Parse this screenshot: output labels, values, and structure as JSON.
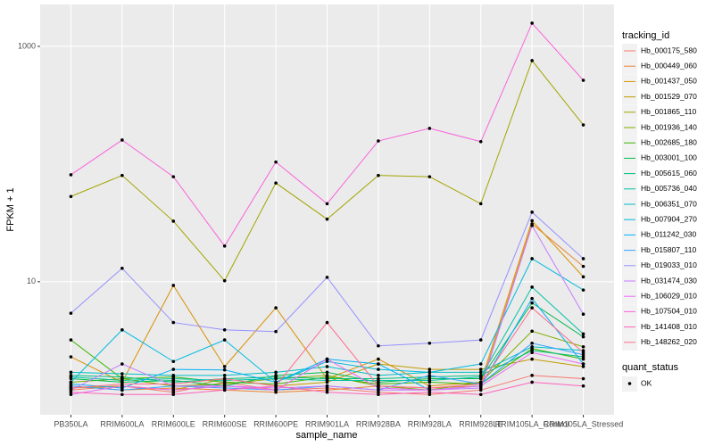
{
  "chart_data": {
    "type": "line",
    "x_label": "sample_name",
    "y_label": "FPKM + 1",
    "log_y": true,
    "grid": true,
    "legend_position": "right",
    "legend_title": "tracking_id",
    "point_legend": {
      "title": "quant_status",
      "labels": [
        "OK"
      ],
      "color": "#000000"
    },
    "categories": [
      "PB350LA",
      "RRIM600LA",
      "RRIM600LE",
      "RRIM600SE",
      "RRIM600PE",
      "RRIM901LA",
      "RRIM928BA",
      "RRIM928LA",
      "RRIM928LE",
      "RRIM105LA_Control",
      "RRIM105LA_Stressed"
    ],
    "ylim": [
      0.74,
      2270
    ],
    "yticks": [
      10,
      1000
    ],
    "series": [
      {
        "name": "Hb_000175_580",
        "color": "#F8766D",
        "values": [
          1.2,
          1.3,
          1.15,
          1.4,
          1.2,
          1.25,
          1.15,
          1.1,
          1.2,
          1.6,
          1.5
        ]
      },
      {
        "name": "Hb_000449_060",
        "color": "#EA8331",
        "values": [
          1.3,
          1.2,
          1.25,
          1.2,
          1.15,
          1.2,
          1.3,
          1.25,
          1.3,
          31,
          13.5
        ]
      },
      {
        "name": "Hb_001437_050",
        "color": "#D89000",
        "values": [
          2.3,
          1.4,
          9.3,
          1.9,
          6.0,
          1.5,
          2.2,
          1.3,
          1.4,
          33,
          11
        ]
      },
      {
        "name": "Hb_001529_070",
        "color": "#C09B00",
        "values": [
          1.25,
          1.3,
          1.2,
          1.5,
          1.3,
          1.4,
          2.0,
          1.8,
          1.8,
          2.2,
          1.9
        ]
      },
      {
        "name": "Hb_001865_110",
        "color": "#A3A500",
        "values": [
          53,
          80,
          32.7,
          10.2,
          69,
          34,
          80,
          78,
          46,
          757,
          215
        ]
      },
      {
        "name": "Hb_001936_140",
        "color": "#7CAE00",
        "values": [
          1.4,
          1.5,
          1.3,
          1.35,
          1.5,
          1.6,
          1.3,
          1.2,
          1.4,
          3.8,
          2.8
        ]
      },
      {
        "name": "Hb_002685_180",
        "color": "#39B600",
        "values": [
          3.2,
          1.5,
          1.55,
          1.4,
          1.35,
          1.55,
          1.35,
          1.4,
          1.35,
          2.7,
          2.2
        ]
      },
      {
        "name": "Hb_003001_100",
        "color": "#00BB4E",
        "values": [
          1.5,
          1.4,
          1.45,
          1.3,
          1.6,
          1.7,
          1.4,
          1.5,
          1.5,
          6.6,
          3.4
        ]
      },
      {
        "name": "Hb_005615_060",
        "color": "#00BF7D",
        "values": [
          1.6,
          1.55,
          1.4,
          1.5,
          1.55,
          1.5,
          1.5,
          1.55,
          1.6,
          2.6,
          2.3
        ]
      },
      {
        "name": "Hb_005736_040",
        "color": "#00C1A3",
        "values": [
          1.55,
          1.45,
          1.5,
          1.45,
          1.5,
          1.45,
          1.45,
          1.45,
          1.55,
          9.0,
          3.6
        ]
      },
      {
        "name": "Hb_006351_070",
        "color": "#00BFC4",
        "values": [
          1.7,
          1.65,
          1.6,
          1.6,
          1.7,
          1.9,
          1.6,
          1.7,
          1.7,
          2.8,
          2.6
        ]
      },
      {
        "name": "Hb_007904_270",
        "color": "#00BAE0",
        "values": [
          1.4,
          3.9,
          2.1,
          3.2,
          1.4,
          2.1,
          1.8,
          1.7,
          2.0,
          15.7,
          8.5
        ]
      },
      {
        "name": "Hb_011242_030",
        "color": "#00B0F6",
        "values": [
          1.35,
          1.25,
          1.8,
          1.78,
          1.4,
          2.2,
          2.0,
          1.2,
          1.3,
          7.2,
          2.0
        ]
      },
      {
        "name": "Hb_015807_110",
        "color": "#35A2FF",
        "values": [
          1.3,
          1.2,
          1.3,
          1.25,
          1.2,
          1.3,
          1.2,
          1.6,
          1.35,
          3.0,
          2.4
        ]
      },
      {
        "name": "Hb_019033_010",
        "color": "#9590FF",
        "values": [
          5.4,
          13,
          4.5,
          3.9,
          3.77,
          10.9,
          2.85,
          3.0,
          3.2,
          39,
          15.7
        ]
      },
      {
        "name": "Hb_031474_030",
        "color": "#C77CFF",
        "values": [
          1.2,
          2.0,
          1.3,
          1.3,
          1.25,
          1.3,
          1.2,
          1.2,
          1.25,
          30,
          5.3
        ]
      },
      {
        "name": "Hb_106029_010",
        "color": "#E76BF3",
        "values": [
          1.1,
          1.3,
          1.2,
          1.3,
          1.2,
          2.2,
          1.25,
          1.2,
          1.3,
          2.5,
          2.0
        ]
      },
      {
        "name": "Hb_107504_010",
        "color": "#FA62DB",
        "values": [
          81,
          160,
          78,
          20.1,
          104,
          46,
          157,
          201,
          155,
          1574,
          515
        ]
      },
      {
        "name": "Hb_141408_010",
        "color": "#FF62BC",
        "values": [
          1.15,
          1.1,
          1.1,
          1.2,
          1.3,
          1.15,
          1.1,
          1.15,
          1.1,
          1.4,
          1.3
        ]
      },
      {
        "name": "Hb_148262_020",
        "color": "#FF6C91",
        "values": [
          1.25,
          1.35,
          1.35,
          1.5,
          1.3,
          4.5,
          1.3,
          1.25,
          1.35,
          6.0,
          2.5
        ]
      }
    ]
  }
}
